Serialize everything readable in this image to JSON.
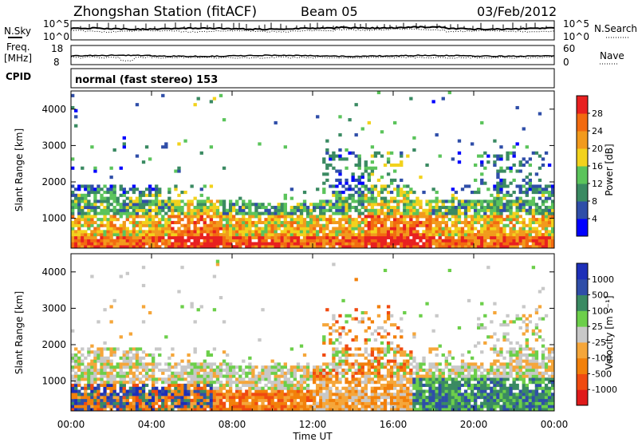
{
  "header": {
    "station": "Zhongshan Station (fitACF)",
    "beam": "Beam 05",
    "date": "03/Feb/2012"
  },
  "top_panels": {
    "nsky_label": "N.Sky",
    "nsearch_label": "N.Search",
    "nsky_ticks": [
      "10^5",
      "10^0"
    ],
    "nsearch_ticks": [
      "10^5",
      "10^0"
    ],
    "freq_label_line1": "Freq.",
    "freq_label_line2": "[MHz]",
    "freq_ticks": [
      "18",
      "8"
    ],
    "nave_label": "Nave",
    "nave_ticks": [
      "60",
      "0"
    ],
    "cpid_label": "CPID",
    "cpid_text": "normal (fast stereo) 153"
  },
  "colors": {
    "power_scale": [
      "#0000ff",
      "#2f4ea8",
      "#3a8a62",
      "#5bc45b",
      "#f2d21c",
      "#f29a1c",
      "#f26a10",
      "#e82020"
    ],
    "velocity_scale": [
      "#e01a1a",
      "#f04a10",
      "#f2800a",
      "#f5a63a",
      "#c8c8c8",
      "#6ccf4a",
      "#3a8a62",
      "#2f4ea8",
      "#1d2fb8"
    ]
  },
  "chart_data": [
    {
      "type": "heatmap",
      "name": "power",
      "xlabel": "",
      "ylabel": "Slant Range [km]",
      "x_range_hours": [
        0,
        24
      ],
      "y_range_km": [
        180,
        4500
      ],
      "yticks": [
        1000,
        2000,
        3000,
        4000
      ],
      "colorbar": {
        "label": "Power [dB]",
        "ticks": [
          4,
          8,
          12,
          16,
          20,
          24,
          28
        ],
        "range": [
          0,
          32
        ]
      }
    },
    {
      "type": "heatmap",
      "name": "velocity",
      "xlabel": "Time UT",
      "ylabel": "Slant Range [km]",
      "x_range_hours": [
        0,
        24
      ],
      "y_range_km": [
        180,
        4500
      ],
      "xticks": [
        "00:00",
        "04:00",
        "08:00",
        "12:00",
        "16:00",
        "20:00",
        "00:00"
      ],
      "yticks": [
        1000,
        2000,
        3000,
        4000
      ],
      "colorbar": {
        "label": "Velocity [m s⁻¹]",
        "ticks": [
          1000,
          500,
          100,
          25,
          -25,
          -100,
          -500,
          -1000
        ]
      }
    }
  ]
}
